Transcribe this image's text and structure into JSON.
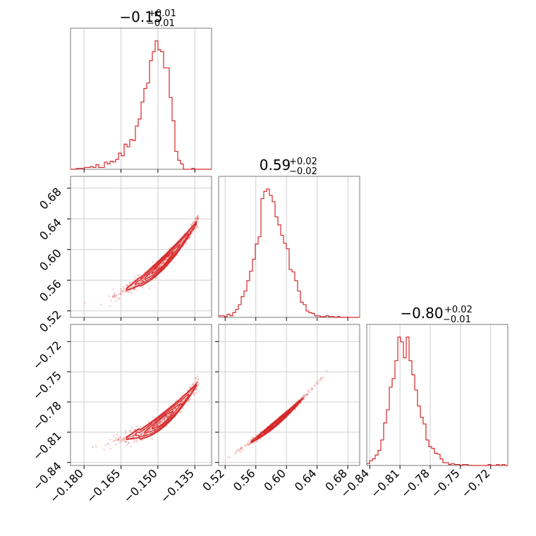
{
  "chart_data": {
    "type": "corner",
    "color": "#d62728",
    "grid": true,
    "parameters": [
      {
        "id": "p0",
        "title_main": "−0.15",
        "title_sup": "+0.01",
        "title_sub": "−0.01",
        "range": [
          -0.1855,
          -0.1282
        ],
        "ticks": [
          -0.18,
          -0.165,
          -0.15,
          -0.135
        ],
        "tick_labels": [
          "−0.180",
          "−0.165",
          "−0.150",
          "−0.135"
        ]
      },
      {
        "id": "p1",
        "title_main": "0.59",
        "title_sup": "+0.02",
        "title_sub": "−0.02",
        "range": [
          0.5115,
          0.6955
        ],
        "ticks": [
          0.52,
          0.56,
          0.6,
          0.64,
          0.68
        ],
        "tick_labels": [
          "0.52",
          "0.56",
          "0.60",
          "0.64",
          "0.68"
        ]
      },
      {
        "id": "p2",
        "title_main": "−0.80",
        "title_sup": "+0.02",
        "title_sub": "−0.01",
        "range": [
          -0.843,
          -0.703
        ],
        "ticks": [
          -0.84,
          -0.81,
          -0.78,
          -0.75,
          -0.72
        ],
        "tick_labels": [
          "−0.84",
          "−0.81",
          "−0.78",
          "−0.75",
          "−0.72"
        ]
      }
    ],
    "histograms": [
      {
        "param": 0,
        "bin_edges_start": -0.1855,
        "bin_width": 0.00115,
        "counts": [
          0,
          0,
          1,
          1,
          1,
          2,
          2,
          3,
          2,
          5,
          2,
          2,
          8,
          6,
          9,
          8,
          11,
          18,
          15,
          28,
          25,
          33,
          32,
          48,
          56,
          75,
          90,
          96,
          121,
          131,
          143,
          133,
          131,
          113,
          113,
          80,
          54,
          20,
          10,
          6,
          0,
          0,
          0,
          1,
          0,
          0,
          0,
          0,
          0,
          0
        ]
      },
      {
        "param": 1,
        "bin_edges_start": 0.5115,
        "bin_width": 0.00368,
        "counts": [
          2,
          2,
          1,
          4,
          2,
          6,
          10,
          16,
          26,
          33,
          46,
          58,
          73,
          92,
          101,
          149,
          158,
          161,
          153,
          145,
          126,
          116,
          103,
          93,
          86,
          60,
          57,
          46,
          33,
          19,
          16,
          8,
          6,
          5,
          2,
          2,
          1,
          1,
          2,
          1,
          1,
          0,
          1,
          0,
          0,
          0,
          0,
          0,
          0,
          0
        ]
      },
      {
        "param": 2,
        "bin_edges_start": -0.843,
        "bin_width": 0.0028,
        "counts": [
          2,
          5,
          7,
          11,
          16,
          27,
          45,
          59,
          83,
          92,
          111,
          136,
          131,
          114,
          136,
          111,
          96,
          80,
          63,
          51,
          44,
          27,
          20,
          18,
          13,
          12,
          7,
          3,
          3,
          1,
          2,
          1,
          1,
          0,
          1,
          1,
          0,
          0,
          0,
          0,
          0,
          0,
          0,
          1,
          0,
          0,
          1,
          0,
          1,
          0
        ]
      }
    ],
    "correlations": [
      {
        "pair": [
          0,
          1
        ],
        "relation": "quadratic",
        "curve": {
          "x_points": [
            -0.18,
            -0.165,
            -0.15,
            -0.135
          ],
          "y_points": [
            0.525,
            0.544,
            0.576,
            0.632
          ]
        },
        "x_spread_sd": 0.0095,
        "scatter_sd": 0.0042
      },
      {
        "pair": [
          0,
          2
        ],
        "relation": "quadratic",
        "curve": {
          "x_points": [
            -0.18,
            -0.165,
            -0.15,
            -0.135
          ],
          "y_points": [
            -0.828,
            -0.818,
            -0.802,
            -0.765
          ]
        },
        "x_spread_sd": 0.0095,
        "scatter_sd": 0.0035
      },
      {
        "pair": [
          1,
          2
        ],
        "relation": "linear",
        "curve": {
          "x_points": [
            0.52,
            0.6,
            0.68
          ],
          "y_points": [
            -0.835,
            -0.792,
            -0.724
          ]
        },
        "x_spread_sd": 0.022,
        "scatter_sd": 0.0012
      }
    ]
  }
}
